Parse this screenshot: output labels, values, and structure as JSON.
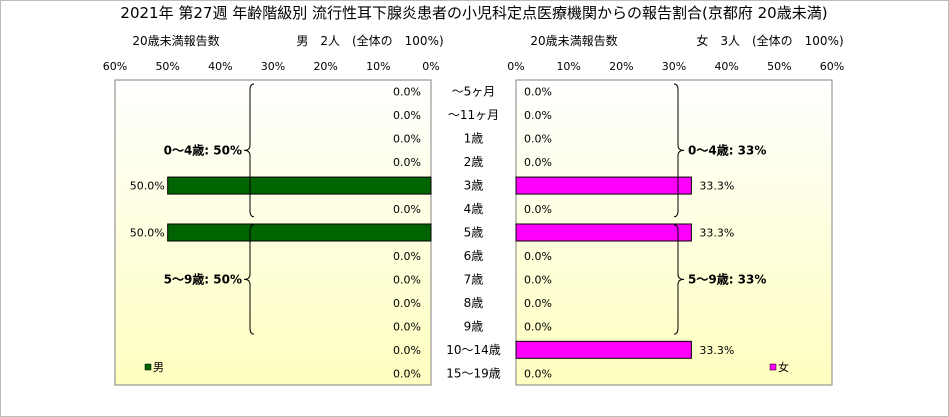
{
  "title": "2021年 第27週 年齢階級別 流行性耳下腺炎患者の小児科定点医療機関からの報告割合(京都府 20歳未満)",
  "chart_data": {
    "type": "bar",
    "layout": "population-pyramid",
    "categories": [
      "～5ヶ月",
      "～11ヶ月",
      "1歳",
      "2歳",
      "3歳",
      "4歳",
      "5歳",
      "6歳",
      "7歳",
      "8歳",
      "9歳",
      "10～14歳",
      "15～19歳"
    ],
    "x_ticks": [
      "60%",
      "50%",
      "40%",
      "30%",
      "20%",
      "10%",
      "0%"
    ],
    "x_ticks_right": [
      "0%",
      "10%",
      "20%",
      "30%",
      "40%",
      "50%",
      "60%"
    ],
    "xlim": [
      0,
      60
    ],
    "series": [
      {
        "name": "男",
        "side": "left",
        "axis_label": "20歳未満報告数",
        "total_label": "男　2人　(全体の　100%)",
        "color": "#006400",
        "values": [
          0,
          0,
          0,
          0,
          50,
          0,
          50,
          0,
          0,
          0,
          0,
          0,
          0
        ],
        "labels": [
          "0.0%",
          "0.0%",
          "0.0%",
          "0.0%",
          "50.0%",
          "0.0%",
          "50.0%",
          "0.0%",
          "0.0%",
          "0.0%",
          "0.0%",
          "0.0%",
          "0.0%"
        ],
        "groups": [
          {
            "label": "0～4歳: 50%",
            "from": 0,
            "to": 5
          },
          {
            "label": "5～9歳: 50%",
            "from": 6,
            "to": 10
          }
        ]
      },
      {
        "name": "女",
        "side": "right",
        "axis_label": "20歳未満報告数",
        "total_label": "女　3人　(全体の　100%)",
        "color": "#ff00ff",
        "values": [
          0,
          0,
          0,
          0,
          33.3,
          0,
          33.3,
          0,
          0,
          0,
          0,
          33.3,
          0
        ],
        "labels": [
          "0.0%",
          "0.0%",
          "0.0%",
          "0.0%",
          "33.3%",
          "0.0%",
          "33.3%",
          "0.0%",
          "0.0%",
          "0.0%",
          "0.0%",
          "33.3%",
          "0.0%"
        ],
        "groups": [
          {
            "label": "0～4歳: 33%",
            "from": 0,
            "to": 5
          },
          {
            "label": "5～9歳: 33%",
            "from": 6,
            "to": 10
          }
        ]
      }
    ],
    "legend": [
      "男",
      "女"
    ]
  },
  "colors": {
    "plot_bg_top": "#ffffff",
    "plot_bg_bottom": "#ffffc0",
    "male": "#006400",
    "female": "#ff00ff"
  }
}
